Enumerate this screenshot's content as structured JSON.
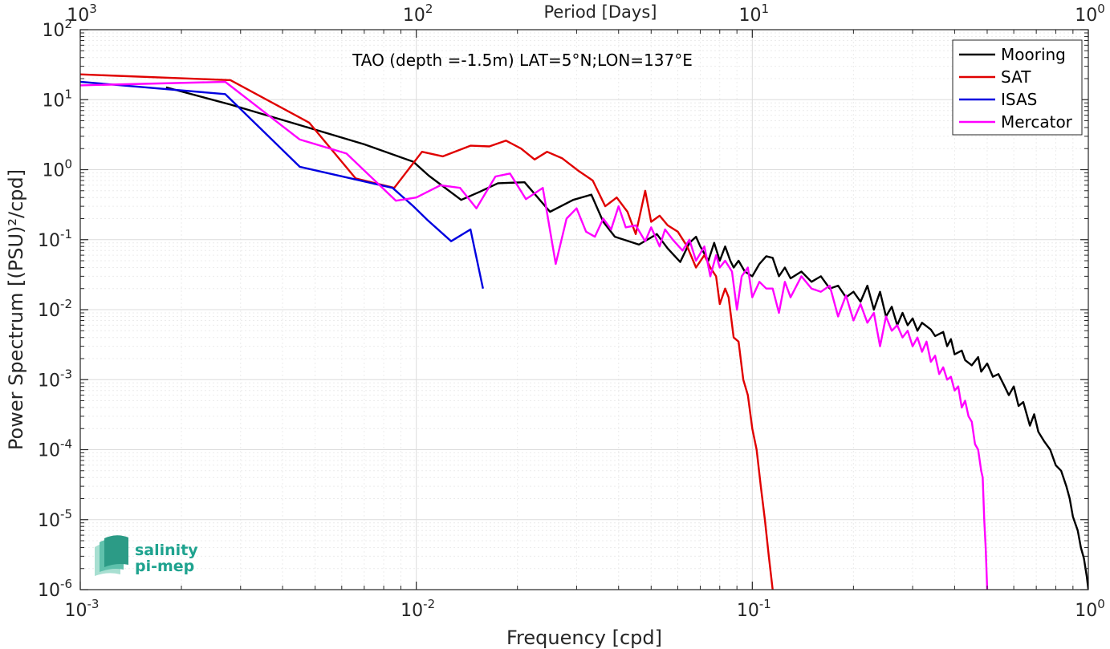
{
  "chart_data": {
    "type": "line",
    "title": "TAO (depth =-1.5m) LAT=5°N;LON=137°E",
    "xlabel": "Frequency [cpd]",
    "ylabel": "Power Spectrum [(PSU)²/cpd]",
    "top_xlabel": "Period [Days]",
    "xscale": "log",
    "yscale": "log",
    "xlim": [
      0.001,
      1
    ],
    "ylim": [
      1e-06,
      100
    ],
    "grid": true,
    "legend_position": "top-right",
    "x_ticks": [
      {
        "base": "10",
        "exp": "-3"
      },
      {
        "base": "10",
        "exp": "-2"
      },
      {
        "base": "10",
        "exp": "-1"
      },
      {
        "base": "10",
        "exp": "0"
      }
    ],
    "y_ticks": [
      {
        "base": "10",
        "exp": "-6"
      },
      {
        "base": "10",
        "exp": "-5"
      },
      {
        "base": "10",
        "exp": "-4"
      },
      {
        "base": "10",
        "exp": "-3"
      },
      {
        "base": "10",
        "exp": "-2"
      },
      {
        "base": "10",
        "exp": "-1"
      },
      {
        "base": "10",
        "exp": "0"
      },
      {
        "base": "10",
        "exp": "1"
      },
      {
        "base": "10",
        "exp": "2"
      }
    ],
    "top_ticks": [
      {
        "base": "10",
        "exp": "3"
      },
      {
        "base": "10",
        "exp": "2"
      },
      {
        "base": "10",
        "exp": "1"
      },
      {
        "base": "10",
        "exp": "0"
      }
    ],
    "series": [
      {
        "name": "Mooring",
        "color": "#000000",
        "points": [
          [
            0.0018,
            15
          ],
          [
            0.0028,
            8.5
          ],
          [
            0.0046,
            4.2
          ],
          [
            0.007,
            2.3
          ],
          [
            0.0098,
            1.3
          ],
          [
            0.0109,
            0.82
          ],
          [
            0.0136,
            0.37
          ],
          [
            0.0154,
            0.48
          ],
          [
            0.0175,
            0.64
          ],
          [
            0.021,
            0.66
          ],
          [
            0.025,
            0.25
          ],
          [
            0.0293,
            0.37
          ],
          [
            0.0332,
            0.44
          ],
          [
            0.036,
            0.18
          ],
          [
            0.039,
            0.11
          ],
          [
            0.046,
            0.085
          ],
          [
            0.052,
            0.12
          ],
          [
            0.056,
            0.075
          ],
          [
            0.061,
            0.048
          ],
          [
            0.065,
            0.09
          ],
          [
            0.068,
            0.11
          ],
          [
            0.07,
            0.08
          ],
          [
            0.074,
            0.05
          ],
          [
            0.077,
            0.09
          ],
          [
            0.08,
            0.05
          ],
          [
            0.083,
            0.08
          ],
          [
            0.086,
            0.05
          ],
          [
            0.088,
            0.04
          ],
          [
            0.091,
            0.05
          ],
          [
            0.095,
            0.035
          ],
          [
            0.1,
            0.03
          ],
          [
            0.105,
            0.045
          ],
          [
            0.11,
            0.058
          ],
          [
            0.115,
            0.055
          ],
          [
            0.12,
            0.03
          ],
          [
            0.125,
            0.04
          ],
          [
            0.13,
            0.028
          ],
          [
            0.14,
            0.035
          ],
          [
            0.15,
            0.025
          ],
          [
            0.16,
            0.03
          ],
          [
            0.17,
            0.02
          ],
          [
            0.18,
            0.022
          ],
          [
            0.19,
            0.015
          ],
          [
            0.2,
            0.018
          ],
          [
            0.21,
            0.013
          ],
          [
            0.22,
            0.022
          ],
          [
            0.23,
            0.01
          ],
          [
            0.24,
            0.018
          ],
          [
            0.25,
            0.008
          ],
          [
            0.26,
            0.011
          ],
          [
            0.27,
            0.006
          ],
          [
            0.28,
            0.009
          ],
          [
            0.29,
            0.006
          ],
          [
            0.3,
            0.0075
          ],
          [
            0.31,
            0.005
          ],
          [
            0.32,
            0.0065
          ],
          [
            0.34,
            0.0052
          ],
          [
            0.35,
            0.0042
          ],
          [
            0.37,
            0.0048
          ],
          [
            0.38,
            0.003
          ],
          [
            0.39,
            0.0038
          ],
          [
            0.4,
            0.0023
          ],
          [
            0.42,
            0.0026
          ],
          [
            0.43,
            0.0019
          ],
          [
            0.45,
            0.0016
          ],
          [
            0.47,
            0.0021
          ],
          [
            0.48,
            0.0013
          ],
          [
            0.5,
            0.0017
          ],
          [
            0.52,
            0.0011
          ],
          [
            0.54,
            0.0012
          ],
          [
            0.56,
            0.00085
          ],
          [
            0.58,
            0.0006
          ],
          [
            0.6,
            0.0008
          ],
          [
            0.62,
            0.00042
          ],
          [
            0.64,
            0.00048
          ],
          [
            0.67,
            0.00022
          ],
          [
            0.69,
            0.00032
          ],
          [
            0.71,
            0.00018
          ],
          [
            0.74,
            0.00013
          ],
          [
            0.77,
            0.0001
          ],
          [
            0.8,
            6e-05
          ],
          [
            0.83,
            5e-05
          ],
          [
            0.86,
            3e-05
          ],
          [
            0.88,
            2e-05
          ],
          [
            0.9,
            1.1e-05
          ],
          [
            0.93,
            7e-06
          ],
          [
            0.95,
            4e-06
          ],
          [
            0.97,
            2.8e-06
          ],
          [
            0.99,
            1.5e-06
          ],
          [
            1.0,
            1e-06
          ]
        ]
      },
      {
        "name": "SAT",
        "color": "#e00000",
        "points": [
          [
            0.001,
            23
          ],
          [
            0.0028,
            19
          ],
          [
            0.0048,
            4.7
          ],
          [
            0.0066,
            0.75
          ],
          [
            0.0086,
            0.55
          ],
          [
            0.0104,
            1.8
          ],
          [
            0.012,
            1.55
          ],
          [
            0.0145,
            2.2
          ],
          [
            0.0165,
            2.15
          ],
          [
            0.0185,
            2.6
          ],
          [
            0.0205,
            2.0
          ],
          [
            0.0225,
            1.4
          ],
          [
            0.0245,
            1.8
          ],
          [
            0.0272,
            1.45
          ],
          [
            0.0305,
            0.95
          ],
          [
            0.0335,
            0.7
          ],
          [
            0.0365,
            0.3
          ],
          [
            0.0395,
            0.4
          ],
          [
            0.0425,
            0.25
          ],
          [
            0.045,
            0.12
          ],
          [
            0.048,
            0.5
          ],
          [
            0.05,
            0.18
          ],
          [
            0.053,
            0.22
          ],
          [
            0.056,
            0.16
          ],
          [
            0.06,
            0.13
          ],
          [
            0.064,
            0.08
          ],
          [
            0.068,
            0.04
          ],
          [
            0.072,
            0.06
          ],
          [
            0.075,
            0.04
          ],
          [
            0.078,
            0.03
          ],
          [
            0.08,
            0.012
          ],
          [
            0.083,
            0.02
          ],
          [
            0.085,
            0.015
          ],
          [
            0.088,
            0.004
          ],
          [
            0.091,
            0.0035
          ],
          [
            0.094,
            0.001
          ],
          [
            0.097,
            0.0006
          ],
          [
            0.1,
            0.0002
          ],
          [
            0.103,
            0.0001
          ],
          [
            0.106,
            3e-05
          ],
          [
            0.109,
            1e-05
          ],
          [
            0.112,
            3e-06
          ],
          [
            0.115,
            1e-06
          ]
        ]
      },
      {
        "name": "ISAS",
        "color": "#0000e0",
        "points": [
          [
            0.001,
            18
          ],
          [
            0.0027,
            12
          ],
          [
            0.0045,
            1.1
          ],
          [
            0.0085,
            0.55
          ],
          [
            0.0098,
            0.3
          ],
          [
            0.0108,
            0.19
          ],
          [
            0.0127,
            0.095
          ],
          [
            0.0145,
            0.14
          ],
          [
            0.0158,
            0.02
          ]
        ]
      },
      {
        "name": "Mercator",
        "color": "#ff00ff",
        "points": [
          [
            0.001,
            16
          ],
          [
            0.0027,
            18
          ],
          [
            0.0045,
            2.7
          ],
          [
            0.0062,
            1.7
          ],
          [
            0.0087,
            0.36
          ],
          [
            0.01,
            0.4
          ],
          [
            0.0118,
            0.6
          ],
          [
            0.0135,
            0.55
          ],
          [
            0.0151,
            0.28
          ],
          [
            0.0172,
            0.8
          ],
          [
            0.019,
            0.88
          ],
          [
            0.0212,
            0.38
          ],
          [
            0.0238,
            0.55
          ],
          [
            0.026,
            0.045
          ],
          [
            0.028,
            0.2
          ],
          [
            0.03,
            0.28
          ],
          [
            0.032,
            0.13
          ],
          [
            0.034,
            0.11
          ],
          [
            0.036,
            0.2
          ],
          [
            0.038,
            0.14
          ],
          [
            0.04,
            0.3
          ],
          [
            0.042,
            0.15
          ],
          [
            0.045,
            0.16
          ],
          [
            0.048,
            0.095
          ],
          [
            0.05,
            0.15
          ],
          [
            0.053,
            0.08
          ],
          [
            0.055,
            0.14
          ],
          [
            0.058,
            0.1
          ],
          [
            0.062,
            0.07
          ],
          [
            0.065,
            0.1
          ],
          [
            0.068,
            0.05
          ],
          [
            0.072,
            0.08
          ],
          [
            0.075,
            0.03
          ],
          [
            0.078,
            0.06
          ],
          [
            0.08,
            0.04
          ],
          [
            0.083,
            0.05
          ],
          [
            0.087,
            0.035
          ],
          [
            0.09,
            0.01
          ],
          [
            0.093,
            0.03
          ],
          [
            0.097,
            0.04
          ],
          [
            0.1,
            0.015
          ],
          [
            0.105,
            0.025
          ],
          [
            0.11,
            0.02
          ],
          [
            0.115,
            0.02
          ],
          [
            0.12,
            0.009
          ],
          [
            0.125,
            0.025
          ],
          [
            0.13,
            0.015
          ],
          [
            0.14,
            0.03
          ],
          [
            0.15,
            0.02
          ],
          [
            0.16,
            0.018
          ],
          [
            0.17,
            0.022
          ],
          [
            0.18,
            0.008
          ],
          [
            0.19,
            0.016
          ],
          [
            0.2,
            0.007
          ],
          [
            0.21,
            0.012
          ],
          [
            0.22,
            0.0065
          ],
          [
            0.23,
            0.009
          ],
          [
            0.24,
            0.003
          ],
          [
            0.25,
            0.008
          ],
          [
            0.26,
            0.005
          ],
          [
            0.27,
            0.006
          ],
          [
            0.28,
            0.004
          ],
          [
            0.29,
            0.005
          ],
          [
            0.3,
            0.003
          ],
          [
            0.31,
            0.004
          ],
          [
            0.32,
            0.0025
          ],
          [
            0.33,
            0.0035
          ],
          [
            0.34,
            0.0018
          ],
          [
            0.35,
            0.0022
          ],
          [
            0.36,
            0.0012
          ],
          [
            0.37,
            0.0015
          ],
          [
            0.38,
            0.001
          ],
          [
            0.39,
            0.0011
          ],
          [
            0.4,
            0.0007
          ],
          [
            0.41,
            0.0008
          ],
          [
            0.42,
            0.0004
          ],
          [
            0.43,
            0.0005
          ],
          [
            0.44,
            0.0003
          ],
          [
            0.45,
            0.00025
          ],
          [
            0.46,
            0.00012
          ],
          [
            0.47,
            0.0001
          ],
          [
            0.48,
            5e-05
          ],
          [
            0.485,
            4e-05
          ],
          [
            0.49,
            1e-05
          ],
          [
            0.495,
            4e-06
          ],
          [
            0.5,
            1e-06
          ]
        ]
      }
    ]
  },
  "logo": {
    "line1": "salinity",
    "line2": "pi-mep"
  }
}
